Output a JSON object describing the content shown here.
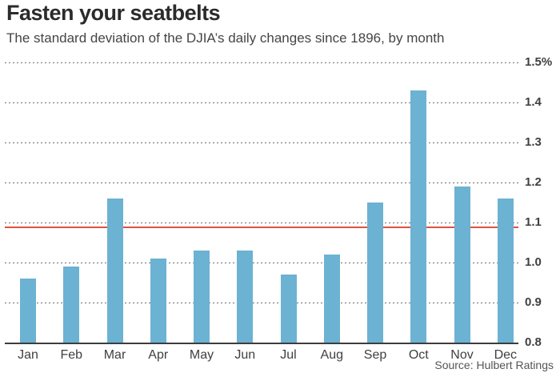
{
  "chart_data": {
    "type": "bar",
    "title": "Fasten your seatbelts",
    "subtitle": "The standard deviation of the DJIA’s daily changes since 1896, by month",
    "source": "Source: Hulbert Ratings",
    "categories": [
      "Jan",
      "Feb",
      "Mar",
      "Apr",
      "May",
      "Jun",
      "Jul",
      "Aug",
      "Sep",
      "Oct",
      "Nov",
      "Dec"
    ],
    "values": [
      0.96,
      0.99,
      1.16,
      1.01,
      1.03,
      1.03,
      0.97,
      1.02,
      1.15,
      1.43,
      1.19,
      1.16
    ],
    "xlabel": "",
    "ylabel": "",
    "ylim": [
      0.8,
      1.5
    ],
    "yticks": [
      {
        "value": 1.5,
        "label": "1.5%"
      },
      {
        "value": 1.4,
        "label": "1.4"
      },
      {
        "value": 1.3,
        "label": "1.3"
      },
      {
        "value": 1.2,
        "label": "1.2"
      },
      {
        "value": 1.1,
        "label": "1.1"
      },
      {
        "value": 1.0,
        "label": "1.0"
      },
      {
        "value": 0.9,
        "label": "0.9"
      },
      {
        "value": 0.8,
        "label": "0.8"
      }
    ],
    "reference_line": {
      "value": 1.09
    },
    "grid": "horizontal-dotted",
    "legend": "none",
    "colors": {
      "bar": "#6cb2d3",
      "reference_line": "#e05140",
      "title": "#2b2b2b",
      "subtitle": "#454545",
      "axis_labels": "#3f3f3f"
    }
  }
}
